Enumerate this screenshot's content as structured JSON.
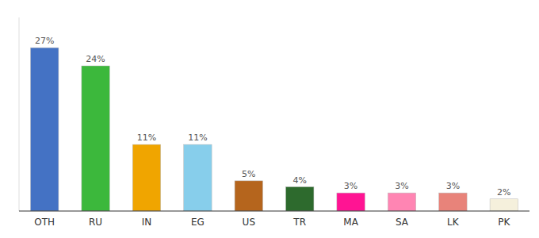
{
  "chart_data": {
    "type": "bar",
    "categories": [
      "OTH",
      "RU",
      "IN",
      "EG",
      "US",
      "TR",
      "MA",
      "SA",
      "LK",
      "PK"
    ],
    "values": [
      27,
      24,
      11,
      11,
      5,
      4,
      3,
      3,
      3,
      2
    ],
    "value_labels": [
      "27%",
      "24%",
      "11%",
      "11%",
      "5%",
      "4%",
      "3%",
      "3%",
      "3%",
      "2%"
    ],
    "colors": [
      "#4472c4",
      "#3cb83c",
      "#f0a500",
      "#87ceeb",
      "#b5651d",
      "#2d6a2d",
      "#ff1493",
      "#ff85b3",
      "#e8837a",
      "#f5f0dc"
    ],
    "ylim": [
      0,
      32
    ],
    "data_labels": true,
    "tick_labels": "x",
    "grid": false
  }
}
